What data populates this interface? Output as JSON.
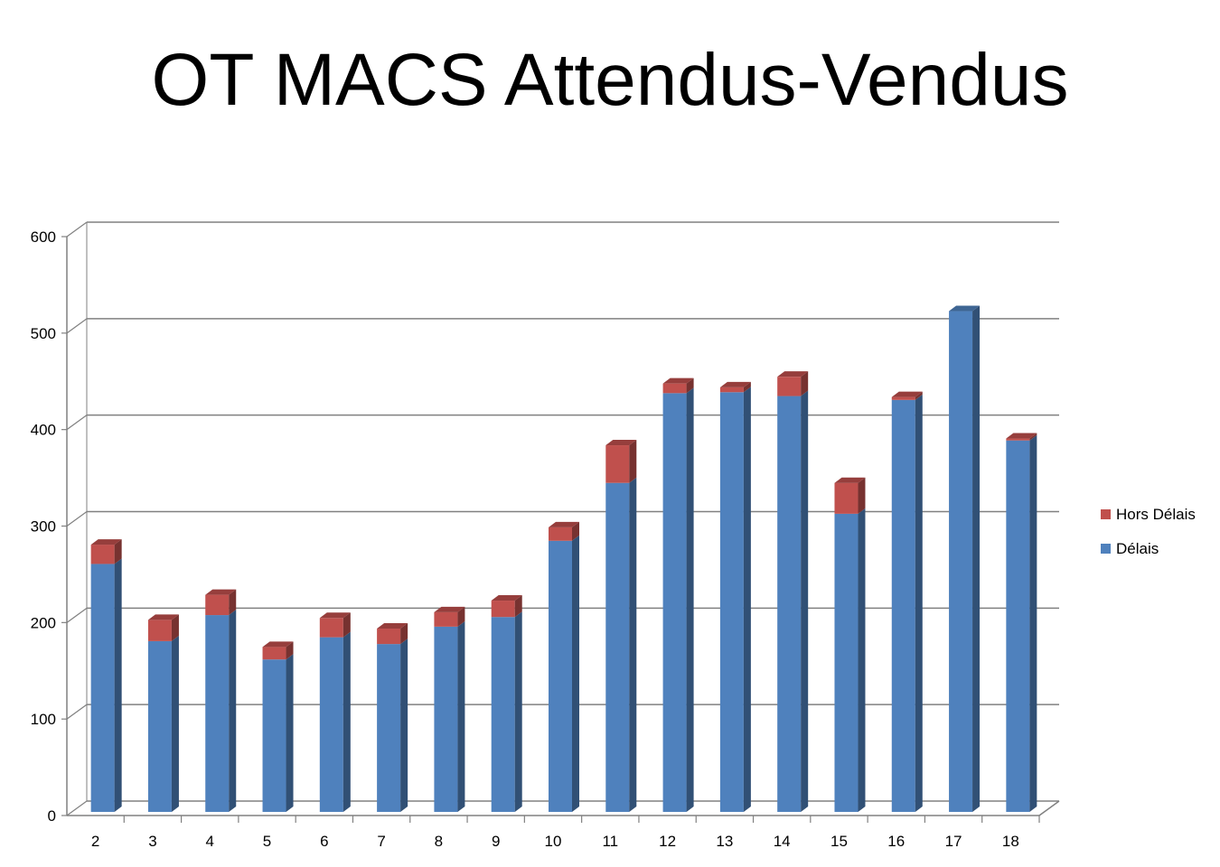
{
  "title": "OT MACS Attendus-Vendus",
  "colors": {
    "delais": "#4F81BD",
    "hors_delais": "#C0504D",
    "grid": "#808080"
  },
  "chart_data": {
    "type": "bar",
    "stacked": true,
    "three_d": true,
    "title": "OT MACS Attendus-Vendus",
    "categories": [
      "2",
      "3",
      "4",
      "5",
      "6",
      "7",
      "8",
      "9",
      "10",
      "11",
      "12",
      "13",
      "14",
      "15",
      "16",
      "17",
      "18"
    ],
    "series": [
      {
        "name": "Délais",
        "color": "#4F81BD",
        "values": [
          257,
          177,
          204,
          158,
          181,
          174,
          192,
          202,
          281,
          341,
          434,
          435,
          431,
          309,
          427,
          519,
          385
        ]
      },
      {
        "name": "Hors Délais",
        "color": "#C0504D",
        "values": [
          20,
          22,
          21,
          13,
          20,
          16,
          15,
          17,
          14,
          39,
          10,
          5,
          20,
          32,
          3,
          0,
          2
        ]
      }
    ],
    "ylim": [
      0,
      600
    ],
    "yticks": [
      "0",
      "100",
      "200",
      "300",
      "400",
      "500",
      "600"
    ],
    "grid": true,
    "legend": "right",
    "legend_order": [
      "Hors Délais",
      "Délais"
    ]
  }
}
